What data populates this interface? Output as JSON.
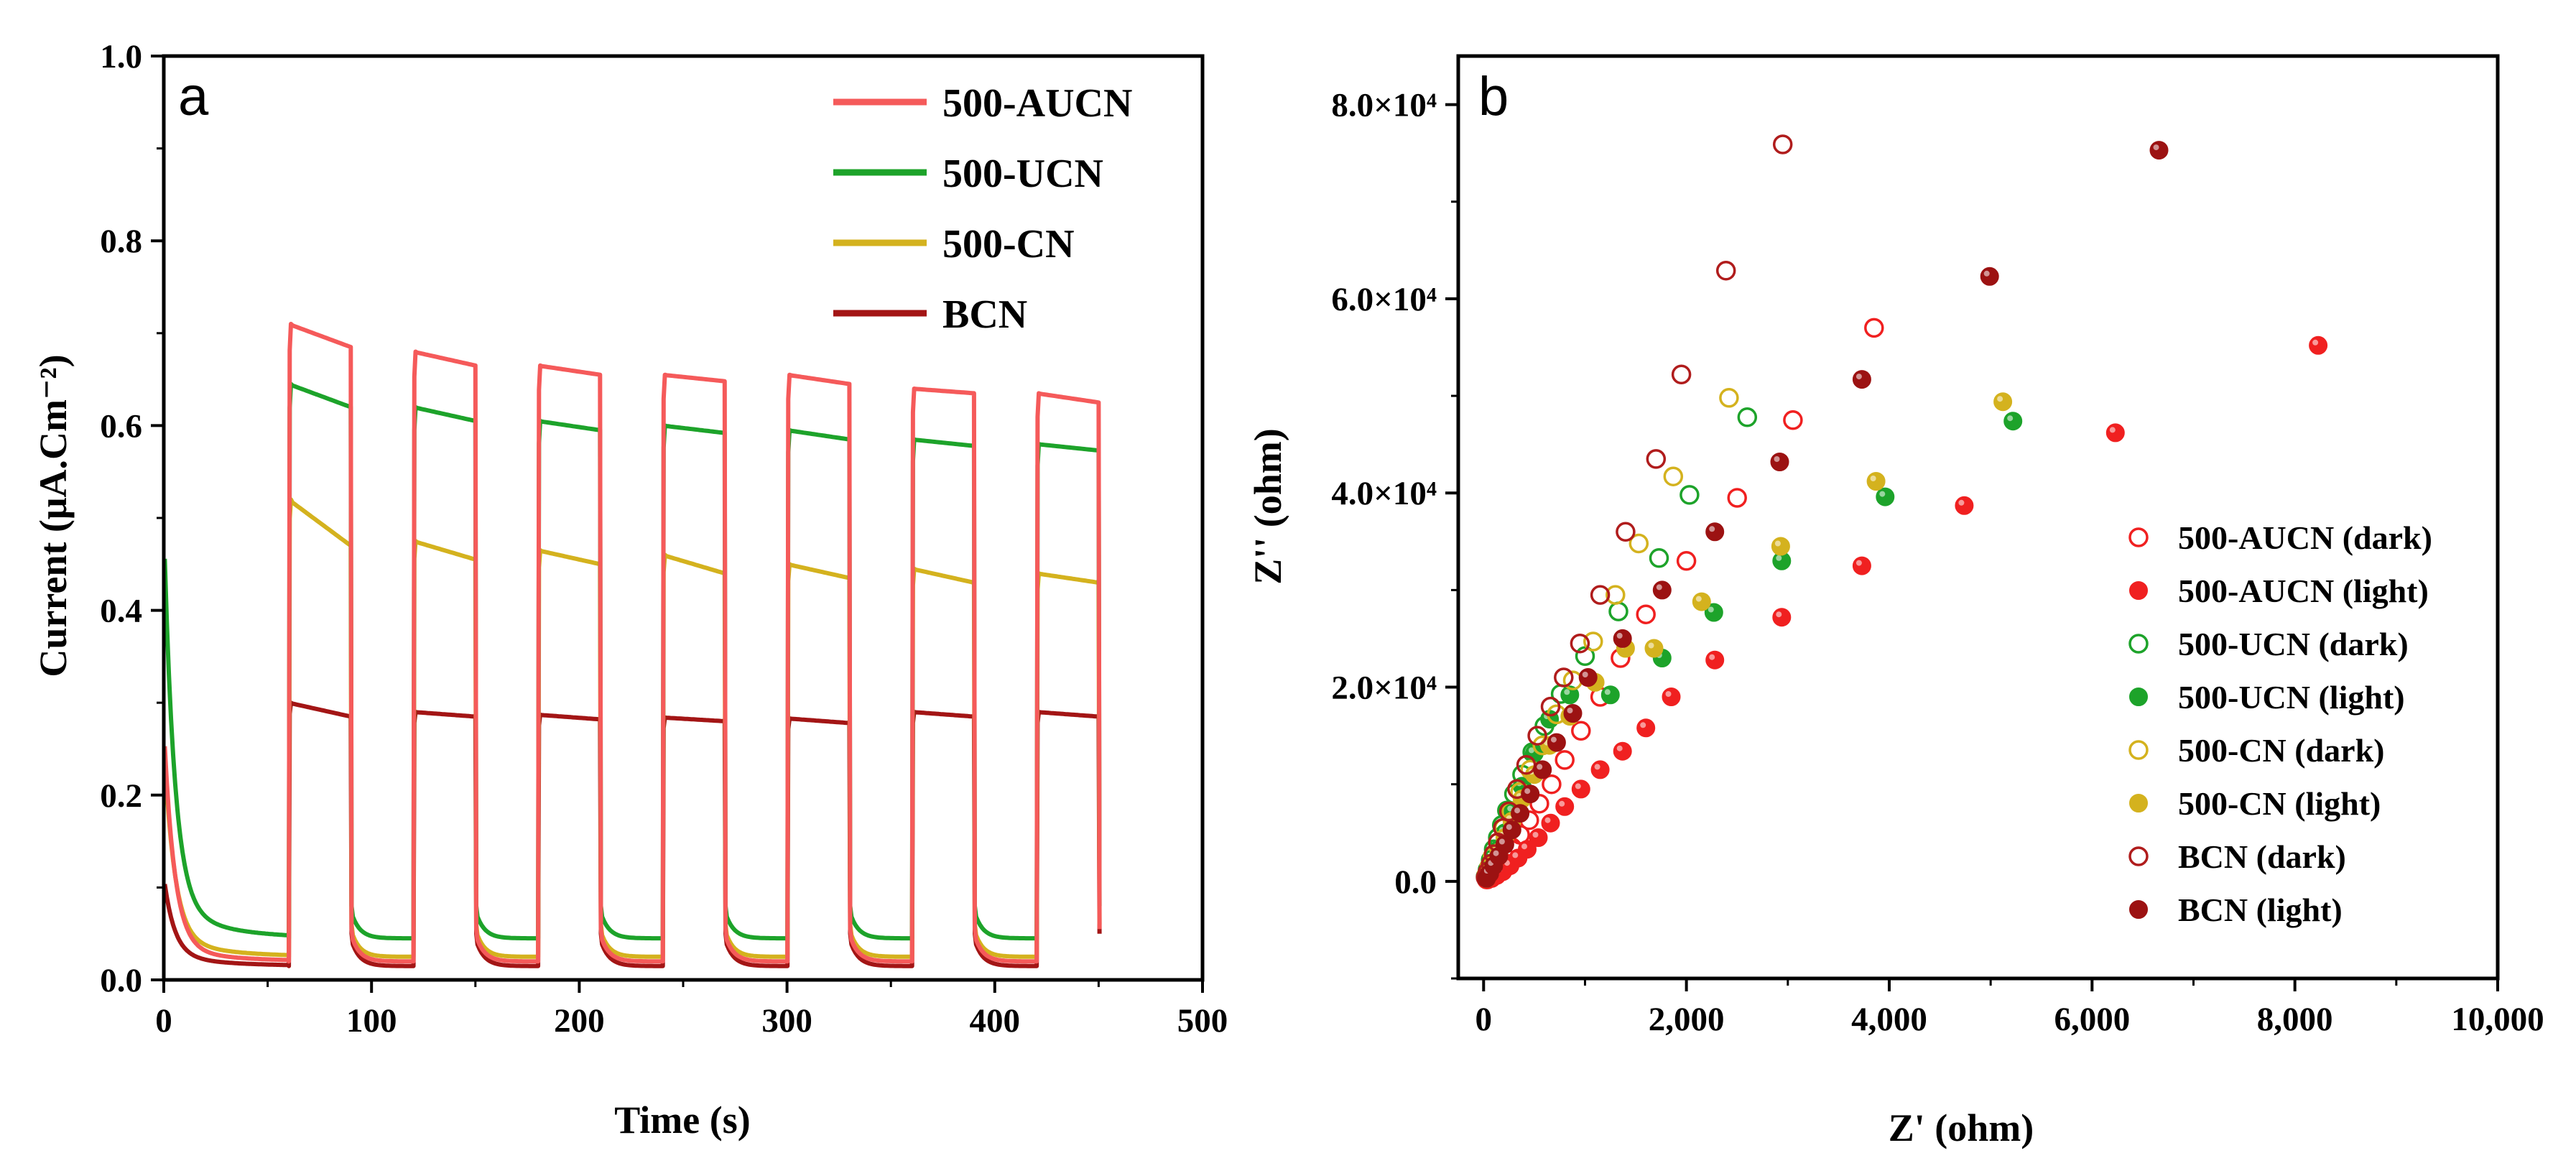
{
  "chart_data": [
    {
      "panel": "a",
      "type": "line",
      "xlabel": "Time (s)",
      "ylabel": "Current (μA.Cm⁻²)",
      "xlim": [
        0,
        500
      ],
      "ylim": [
        0.0,
        1.0
      ],
      "xticks": [
        "0",
        "100",
        "200",
        "300",
        "400",
        "500"
      ],
      "yticks": [
        "0.0",
        "0.2",
        "0.4",
        "0.6",
        "0.8",
        "1.0"
      ],
      "legend_position": "top-right",
      "on_off_cycles": [
        [
          60,
          90
        ],
        [
          120,
          150
        ],
        [
          180,
          210
        ],
        [
          240,
          270
        ],
        [
          300,
          330
        ],
        [
          360,
          390
        ],
        [
          420,
          450
        ]
      ],
      "series": [
        {
          "name": "500-AUCN",
          "color": "#f55a5a",
          "dark_start": 0.26,
          "dark_floor": 0.02,
          "light_start": [
            0.71,
            0.68,
            0.665,
            0.655,
            0.655,
            0.64,
            0.635
          ],
          "light_end": [
            0.685,
            0.665,
            0.655,
            0.648,
            0.645,
            0.635,
            0.625
          ]
        },
        {
          "name": "500-UCN",
          "color": "#1da32a",
          "dark_start": 0.46,
          "dark_floor": 0.045,
          "light_start": [
            0.645,
            0.62,
            0.605,
            0.6,
            0.595,
            0.585,
            0.58
          ],
          "light_end": [
            0.62,
            0.605,
            0.595,
            0.592,
            0.585,
            0.578,
            0.573
          ]
        },
        {
          "name": "500-CN",
          "color": "#d4b21e",
          "dark_start": 0.24,
          "dark_floor": 0.025,
          "light_start": [
            0.52,
            0.475,
            0.465,
            0.46,
            0.45,
            0.445,
            0.44
          ],
          "light_end": [
            0.47,
            0.455,
            0.45,
            0.44,
            0.435,
            0.43,
            0.43
          ]
        },
        {
          "name": "BCN",
          "color": "#a31515",
          "dark_start": 0.1,
          "dark_floor": 0.015,
          "light_start": [
            0.3,
            0.29,
            0.287,
            0.284,
            0.283,
            0.29,
            0.29
          ],
          "light_end": [
            0.285,
            0.285,
            0.282,
            0.28,
            0.278,
            0.285,
            0.285
          ]
        }
      ]
    },
    {
      "panel": "b",
      "type": "scatter",
      "xlabel": "Z' (ohm)",
      "ylabel": "Z'' (ohm)",
      "xlim": [
        -250,
        10000
      ],
      "ylim": [
        -10000,
        85000
      ],
      "xticks": [
        "0",
        "2,000",
        "4,000",
        "6,000",
        "8,000",
        "10,000"
      ],
      "yticks": [
        "0.0",
        "2.0×10⁴",
        "4.0×10⁴",
        "6.0×10⁴",
        "8.0×10⁴"
      ],
      "legend_position": "bottom-right",
      "series": [
        {
          "name": "500-AUCN (dark)",
          "color": "#f02020",
          "filled": false,
          "points": [
            [
              30,
              200
            ],
            [
              60,
              500
            ],
            [
              100,
              1000
            ],
            [
              150,
              1700
            ],
            [
              210,
              2500
            ],
            [
              280,
              3500
            ],
            [
              360,
              4800
            ],
            [
              450,
              6300
            ],
            [
              550,
              8000
            ],
            [
              670,
              10000
            ],
            [
              800,
              12500
            ],
            [
              960,
              15500
            ],
            [
              1150,
              19000
            ],
            [
              1350,
              23000
            ],
            [
              1600,
              27500
            ],
            [
              2000,
              33000
            ],
            [
              2500,
              39500
            ],
            [
              3050,
              47500
            ],
            [
              3850,
              57000
            ]
          ]
        },
        {
          "name": "500-AUCN (light)",
          "color": "#f02020",
          "filled": true,
          "points": [
            [
              40,
              150
            ],
            [
              80,
              300
            ],
            [
              130,
              600
            ],
            [
              190,
              1000
            ],
            [
              260,
              1600
            ],
            [
              340,
              2400
            ],
            [
              430,
              3300
            ],
            [
              540,
              4500
            ],
            [
              660,
              6000
            ],
            [
              800,
              7700
            ],
            [
              960,
              9500
            ],
            [
              1150,
              11500
            ],
            [
              1370,
              13400
            ],
            [
              1600,
              15800
            ],
            [
              1850,
              19000
            ],
            [
              2280,
              22800
            ],
            [
              2940,
              27200
            ],
            [
              3730,
              32500
            ],
            [
              4740,
              38700
            ],
            [
              6230,
              46200
            ],
            [
              8230,
              55200
            ]
          ]
        },
        {
          "name": "500-UCN (dark)",
          "color": "#1da32a",
          "filled": false,
          "points": [
            [
              20,
              500
            ],
            [
              40,
              1200
            ],
            [
              70,
              2200
            ],
            [
              100,
              3300
            ],
            [
              140,
              4500
            ],
            [
              180,
              5800
            ],
            [
              230,
              7300
            ],
            [
              300,
              9000
            ],
            [
              380,
              11000
            ],
            [
              480,
              13300
            ],
            [
              600,
              16000
            ],
            [
              760,
              19300
            ],
            [
              1000,
              23200
            ],
            [
              1330,
              27800
            ],
            [
              1730,
              33300
            ],
            [
              2030,
              39800
            ],
            [
              2600,
              47800
            ]
          ]
        },
        {
          "name": "500-UCN (light)",
          "color": "#1da32a",
          "filled": true,
          "points": [
            [
              30,
              400
            ],
            [
              60,
              1000
            ],
            [
              100,
              2000
            ],
            [
              150,
              3300
            ],
            [
              210,
              5000
            ],
            [
              290,
              7200
            ],
            [
              380,
              9800
            ],
            [
              500,
              13200
            ],
            [
              650,
              16700
            ],
            [
              850,
              19200
            ],
            [
              1250,
              19200
            ],
            [
              1760,
              23000
            ],
            [
              2270,
              27700
            ],
            [
              2940,
              33000
            ],
            [
              3960,
              39600
            ],
            [
              5220,
              47400
            ]
          ]
        },
        {
          "name": "500-CN (dark)",
          "color": "#d4b21e",
          "filled": false,
          "points": [
            [
              25,
              600
            ],
            [
              55,
              1500
            ],
            [
              90,
              2600
            ],
            [
              140,
              4000
            ],
            [
              200,
              5500
            ],
            [
              270,
              7200
            ],
            [
              360,
              9200
            ],
            [
              460,
              11500
            ],
            [
              580,
              14000
            ],
            [
              720,
              17200
            ],
            [
              880,
              20700
            ],
            [
              1080,
              24700
            ],
            [
              1300,
              29500
            ],
            [
              1530,
              34800
            ],
            [
              1870,
              41700
            ],
            [
              2420,
              49800
            ]
          ]
        },
        {
          "name": "500-CN (light)",
          "color": "#d4b21e",
          "filled": true,
          "points": [
            [
              30,
              300
            ],
            [
              60,
              900
            ],
            [
              100,
              1800
            ],
            [
              150,
              3000
            ],
            [
              210,
              4500
            ],
            [
              280,
              6200
            ],
            [
              380,
              8500
            ],
            [
              500,
              11000
            ],
            [
              650,
              14000
            ],
            [
              850,
              17000
            ],
            [
              1100,
              20500
            ],
            [
              1400,
              24000
            ],
            [
              1680,
              24000
            ],
            [
              2150,
              28800
            ],
            [
              2930,
              34500
            ],
            [
              3870,
              41200
            ],
            [
              5120,
              49400
            ]
          ]
        },
        {
          "name": "BCN (dark)",
          "color": "#b01c1c",
          "filled": false,
          "points": [
            [
              20,
              400
            ],
            [
              40,
              1000
            ],
            [
              70,
              1800
            ],
            [
              100,
              2800
            ],
            [
              140,
              4000
            ],
            [
              190,
              5500
            ],
            [
              250,
              7200
            ],
            [
              330,
              9500
            ],
            [
              420,
              12000
            ],
            [
              530,
              15000
            ],
            [
              660,
              18000
            ],
            [
              790,
              21000
            ],
            [
              950,
              24500
            ],
            [
              1150,
              29500
            ],
            [
              1400,
              36000
            ],
            [
              1700,
              43500
            ],
            [
              1950,
              52200
            ],
            [
              2390,
              62900
            ],
            [
              2950,
              75900
            ]
          ]
        },
        {
          "name": "BCN (light)",
          "color": "#9c1212",
          "filled": true,
          "points": [
            [
              30,
              300
            ],
            [
              60,
              800
            ],
            [
              100,
              1600
            ],
            [
              150,
              2600
            ],
            [
              210,
              3800
            ],
            [
              280,
              5300
            ],
            [
              360,
              7000
            ],
            [
              460,
              9000
            ],
            [
              580,
              11500
            ],
            [
              720,
              14300
            ],
            [
              880,
              17300
            ],
            [
              1030,
              21000
            ],
            [
              1370,
              25000
            ],
            [
              1760,
              30000
            ],
            [
              2280,
              36000
            ],
            [
              2920,
              43200
            ],
            [
              3730,
              51700
            ],
            [
              4990,
              62300
            ],
            [
              6660,
              75300
            ]
          ]
        }
      ]
    }
  ]
}
